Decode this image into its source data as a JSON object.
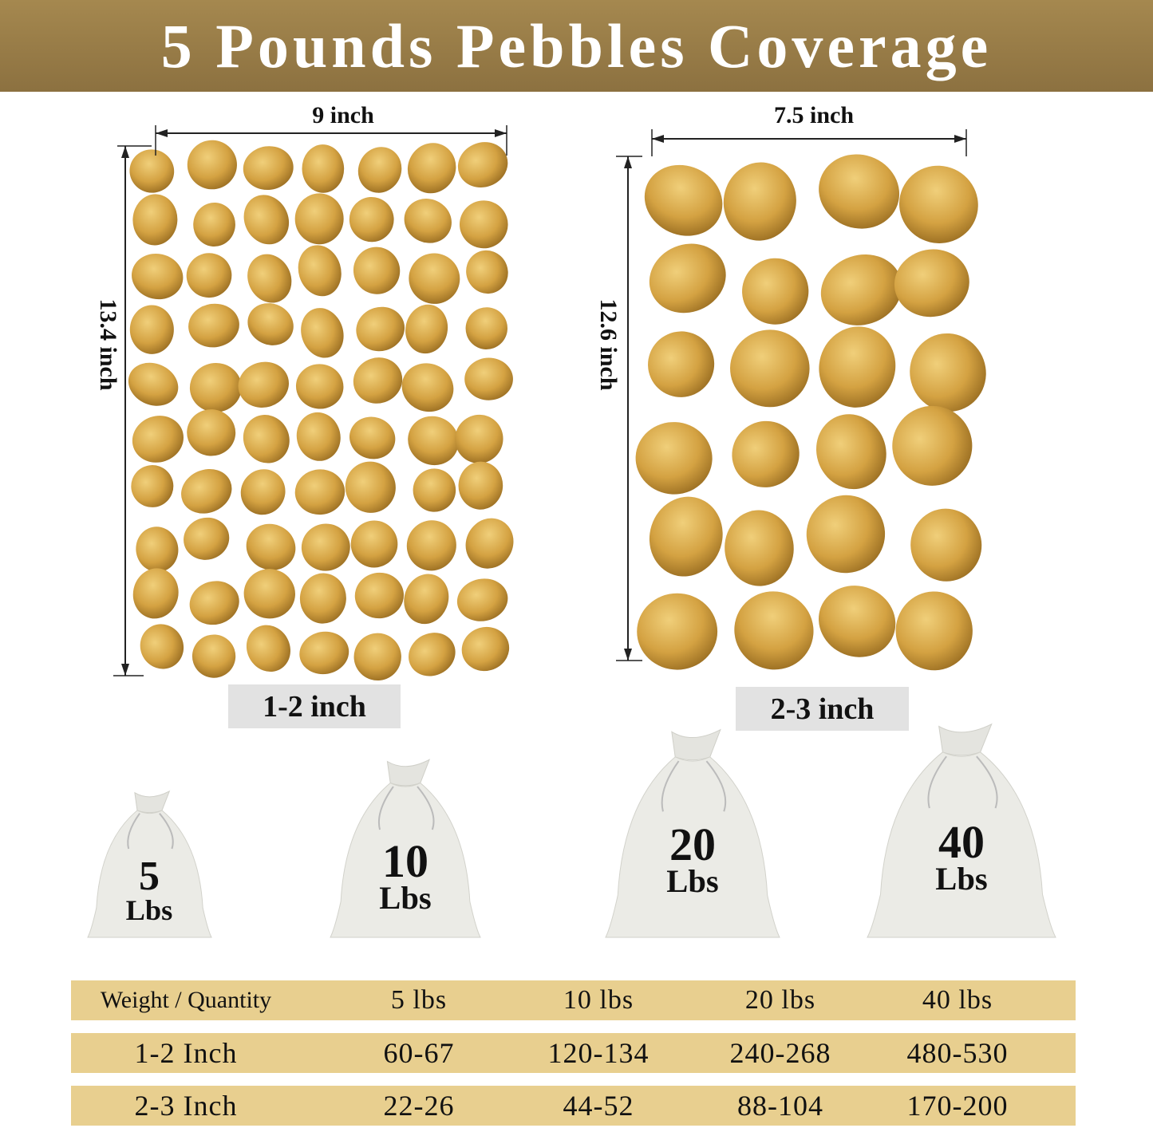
{
  "title": "5 Pounds Pebbles Coverage",
  "colors": {
    "header": "#977a46",
    "table_row": "#e8cf8f",
    "size_label_bg": "#e2e2e2",
    "pebble": "#d6a545",
    "bag": "#ebebe6"
  },
  "left_sample": {
    "width": "9 inch",
    "height": "13.4 inch",
    "size": "1-2 inch"
  },
  "right_sample": {
    "width": "7.5 inch",
    "height": "12.6 inch",
    "size": "2-3 inch"
  },
  "bags": [
    {
      "number": "5",
      "unit": "Lbs"
    },
    {
      "number": "10",
      "unit": "Lbs"
    },
    {
      "number": "20",
      "unit": "Lbs"
    },
    {
      "number": "40",
      "unit": "Lbs"
    }
  ],
  "table": {
    "header": [
      "Weight / Quantity",
      "5 lbs",
      "10 lbs",
      "20 lbs",
      "40 lbs"
    ],
    "rows": [
      [
        "1-2 Inch",
        "60-67",
        "120-134",
        "240-268",
        "480-530"
      ],
      [
        "2-3 Inch",
        "22-26",
        "44-52",
        "88-104",
        "170-200"
      ]
    ]
  }
}
